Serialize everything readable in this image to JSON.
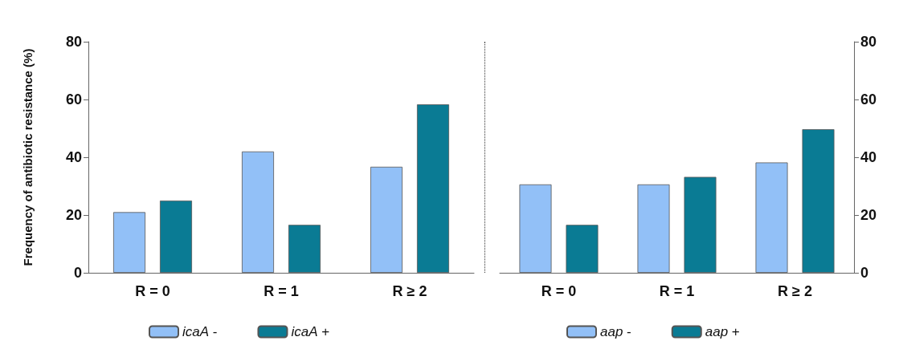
{
  "chart_data": [
    {
      "type": "bar",
      "ylabel": "Frequency of antibiotic resistance (%)",
      "categories": [
        "R = 0",
        "R = 1",
        "R ≥ 2"
      ],
      "series": [
        {
          "name": "icaA -",
          "color": "#92c0f7",
          "values": [
            21,
            42,
            36.7
          ]
        },
        {
          "name": "icaA +",
          "color": "#0a7b94",
          "values": [
            25,
            16.6,
            58.3
          ]
        }
      ],
      "ylim": [
        0,
        80
      ],
      "yticks": [
        0,
        20,
        40,
        60,
        80
      ],
      "grid": false,
      "legend": "bottom"
    },
    {
      "type": "bar",
      "categories": [
        "R = 0",
        "R = 1",
        "R ≥ 2"
      ],
      "series": [
        {
          "name": "aap -",
          "color": "#92c0f7",
          "values": [
            30.6,
            30.6,
            38.2
          ]
        },
        {
          "name": "aap +",
          "color": "#0a7b94",
          "values": [
            16.6,
            33.2,
            49.7
          ]
        }
      ],
      "ylim": [
        0,
        80
      ],
      "yticks": [
        0,
        20,
        40,
        60,
        80
      ],
      "grid": false,
      "legend": "bottom"
    }
  ]
}
